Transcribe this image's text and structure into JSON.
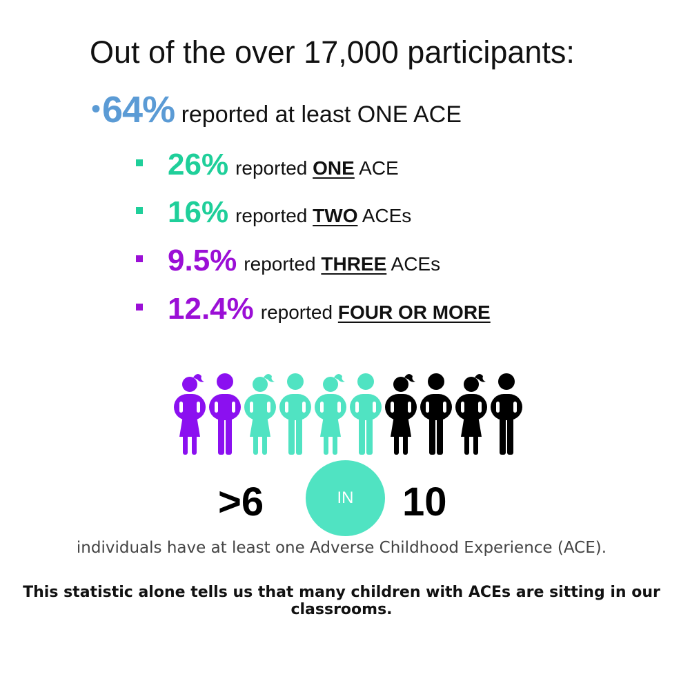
{
  "title": "Out of the over 17,000 participants:",
  "main_stat": {
    "percent": "64%",
    "text": "reported at least ONE ACE",
    "color": "#5b9bd5"
  },
  "sub_stats": [
    {
      "percent": "26%",
      "prefix": "reported",
      "keyword": "ONE",
      "suffix": "ACE",
      "color": "#1fcf9a"
    },
    {
      "percent": "16%",
      "prefix": "reported",
      "keyword": "TWO",
      "suffix": "ACEs",
      "color": "#1fcf9a"
    },
    {
      "percent": "9.5%",
      "prefix": "reported",
      "keyword": "THREE",
      "suffix": "ACEs",
      "color": "#9b0fd6"
    },
    {
      "percent": "12.4%",
      "prefix": "reported",
      "keyword": "FOUR OR MORE",
      "suffix": "",
      "color": "#9b0fd6"
    }
  ],
  "infographic": {
    "figures": [
      {
        "icon": "girl-icon",
        "color": "#8b10f0"
      },
      {
        "icon": "boy-icon",
        "color": "#8b10f0"
      },
      {
        "icon": "girl-icon",
        "color": "#50e3c2"
      },
      {
        "icon": "boy-icon",
        "color": "#50e3c2"
      },
      {
        "icon": "girl-icon",
        "color": "#50e3c2"
      },
      {
        "icon": "boy-icon",
        "color": "#50e3c2"
      },
      {
        "icon": "girl-icon",
        "color": "#000000"
      },
      {
        "icon": "boy-icon",
        "color": "#000000"
      },
      {
        "icon": "girl-icon",
        "color": "#000000"
      },
      {
        "icon": "boy-icon",
        "color": "#000000"
      }
    ],
    "ratio_left": ">6",
    "ratio_mid": "IN",
    "ratio_right": "10",
    "description": "individuals have at least one Adverse Childhood Experience (ACE).",
    "conclusion": "This statistic alone tells us that many children with ACEs are sitting in our classrooms."
  }
}
